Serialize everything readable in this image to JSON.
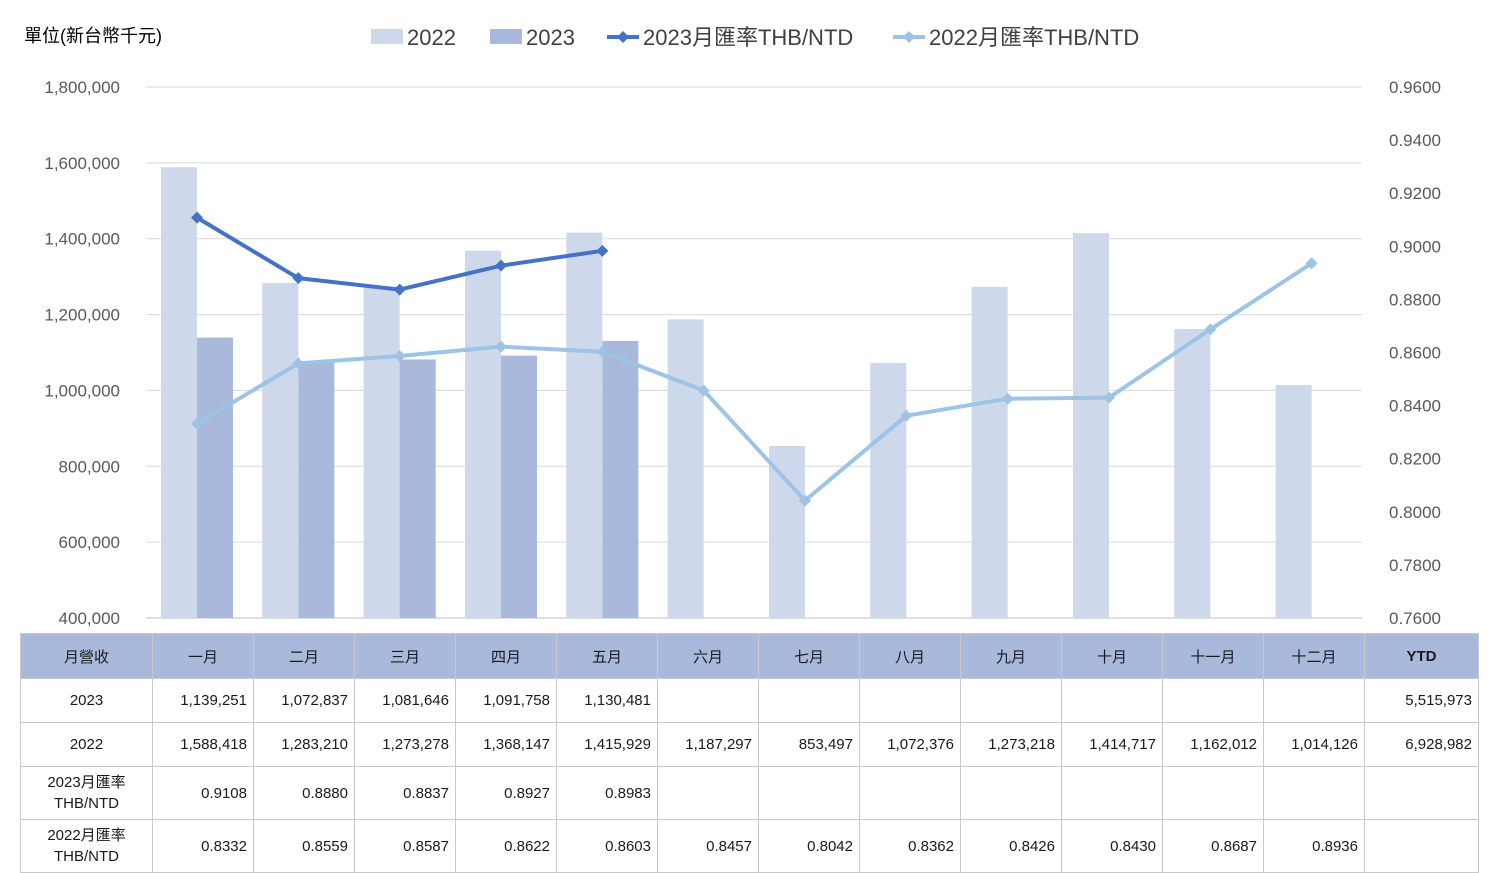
{
  "unit_label": "單位(新台幣千元)",
  "legend": [
    {
      "label": "2022",
      "kind": "bar",
      "color": "#cdd8ea"
    },
    {
      "label": "2023",
      "kind": "bar",
      "color": "#a8b9dc"
    },
    {
      "label": "2023月匯率THB/NTD",
      "kind": "line",
      "color": "#4472c4"
    },
    {
      "label": "2022月匯率THB/NTD",
      "kind": "line",
      "color": "#9dc3e6"
    }
  ],
  "chart_data": {
    "type": "bar",
    "categories": [
      "一月",
      "二月",
      "三月",
      "四月",
      "五月",
      "六月",
      "七月",
      "八月",
      "九月",
      "十月",
      "十一月",
      "十二月"
    ],
    "bar_series": [
      {
        "name": "2022",
        "color": "#cdd8ea",
        "values": [
          1588418,
          1283210,
          1273278,
          1368147,
          1415929,
          1187297,
          853497,
          1072376,
          1273218,
          1414717,
          1162012,
          1014126
        ]
      },
      {
        "name": "2023",
        "color": "#a8b9dc",
        "values": [
          1139251,
          1072837,
          1081646,
          1091758,
          1130481,
          null,
          null,
          null,
          null,
          null,
          null,
          null
        ]
      }
    ],
    "line_series": [
      {
        "name": "2023月匯率THB/NTD",
        "color": "#4472c4",
        "values": [
          0.9108,
          0.888,
          0.8837,
          0.8927,
          0.8983,
          null,
          null,
          null,
          null,
          null,
          null,
          null
        ]
      },
      {
        "name": "2022月匯率THB/NTD",
        "color": "#9dc3e6",
        "values": [
          0.8332,
          0.8559,
          0.8587,
          0.8622,
          0.8603,
          0.8457,
          0.8042,
          0.8362,
          0.8426,
          0.843,
          0.8687,
          0.8936
        ]
      }
    ],
    "y_left": {
      "min": 400000,
      "max": 1800000,
      "ticks": [
        "400,000",
        "600,000",
        "800,000",
        "1,000,000",
        "1,200,000",
        "1,400,000",
        "1,600,000",
        "1,800,000"
      ]
    },
    "y_right": {
      "min": 0.76,
      "max": 0.96,
      "ticks": [
        "0.7600",
        "0.7800",
        "0.8000",
        "0.8200",
        "0.8400",
        "0.8600",
        "0.8800",
        "0.9000",
        "0.9200",
        "0.9400",
        "0.9600"
      ]
    },
    "grid": true,
    "legend_position": "top"
  },
  "table": {
    "corner": "月營收",
    "months": [
      "一月",
      "二月",
      "三月",
      "四月",
      "五月",
      "六月",
      "七月",
      "八月",
      "九月",
      "十月",
      "十一月",
      "十二月"
    ],
    "ytd_header": "YTD",
    "rows": [
      {
        "label": [
          "2023"
        ],
        "cells": [
          "1,139,251",
          "1,072,837",
          "1,081,646",
          "1,091,758",
          "1,130,481",
          "",
          "",
          "",
          "",
          "",
          "",
          ""
        ],
        "ytd": "5,515,973"
      },
      {
        "label": [
          "2022"
        ],
        "cells": [
          "1,588,418",
          "1,283,210",
          "1,273,278",
          "1,368,147",
          "1,415,929",
          "1,187,297",
          "853,497",
          "1,072,376",
          "1,273,218",
          "1,414,717",
          "1,162,012",
          "1,014,126"
        ],
        "ytd": "6,928,982"
      },
      {
        "label": [
          "2023月匯率",
          "THB/NTD"
        ],
        "cells": [
          "0.9108",
          "0.8880",
          "0.8837",
          "0.8927",
          "0.8983",
          "",
          "",
          "",
          "",
          "",
          "",
          ""
        ],
        "ytd": ""
      },
      {
        "label": [
          "2022月匯率",
          "THB/NTD"
        ],
        "cells": [
          "0.8332",
          "0.8559",
          "0.8587",
          "0.8622",
          "0.8603",
          "0.8457",
          "0.8042",
          "0.8362",
          "0.8426",
          "0.8430",
          "0.8687",
          "0.8936"
        ],
        "ytd": ""
      }
    ]
  }
}
